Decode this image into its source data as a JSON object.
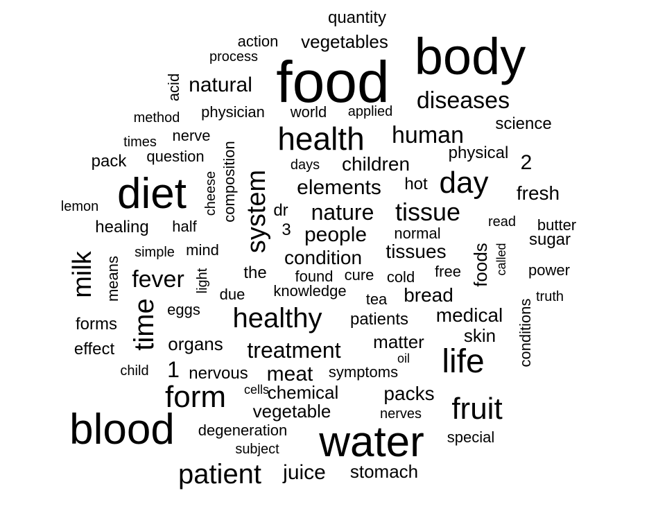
{
  "word_cloud": {
    "color": "#000000",
    "words": [
      {
        "text": "food",
        "freq": 10
      },
      {
        "text": "body",
        "freq": 9
      },
      {
        "text": "water",
        "freq": 9
      },
      {
        "text": "blood",
        "freq": 9
      },
      {
        "text": "diet",
        "freq": 8
      },
      {
        "text": "health",
        "freq": 7
      },
      {
        "text": "life",
        "freq": 7
      },
      {
        "text": "system",
        "freq": 6
      },
      {
        "text": "fruit",
        "freq": 6
      },
      {
        "text": "form",
        "freq": 6
      },
      {
        "text": "time",
        "freq": 6
      },
      {
        "text": "healthy",
        "freq": 6
      },
      {
        "text": "patient",
        "freq": 6
      },
      {
        "text": "milk",
        "freq": 5
      },
      {
        "text": "day",
        "freq": 5
      },
      {
        "text": "tissue",
        "freq": 5
      },
      {
        "text": "human",
        "freq": 4
      },
      {
        "text": "diseases",
        "freq": 4
      },
      {
        "text": "nature",
        "freq": 4
      },
      {
        "text": "treatment",
        "freq": 4
      },
      {
        "text": "fever",
        "freq": 4
      },
      {
        "text": "elements",
        "freq": 4
      },
      {
        "text": "people",
        "freq": 4
      },
      {
        "text": "natural",
        "freq": 4
      },
      {
        "text": "meat",
        "freq": 4
      },
      {
        "text": "juice",
        "freq": 4
      },
      {
        "text": "children",
        "freq": 3
      },
      {
        "text": "fresh",
        "freq": 3
      },
      {
        "text": "packs",
        "freq": 3
      },
      {
        "text": "medical",
        "freq": 3
      },
      {
        "text": "bread",
        "freq": 3
      },
      {
        "text": "tissues",
        "freq": 3
      },
      {
        "text": "condition",
        "freq": 3
      },
      {
        "text": "matter",
        "freq": 3
      },
      {
        "text": "chemical",
        "freq": 3
      },
      {
        "text": "vegetable",
        "freq": 3
      },
      {
        "text": "stomach",
        "freq": 3
      },
      {
        "text": "organs",
        "freq": 3
      },
      {
        "text": "vegetables",
        "freq": 3
      },
      {
        "text": "1",
        "freq": 3
      },
      {
        "text": "2",
        "freq": 3
      },
      {
        "text": "foods",
        "freq": 3
      },
      {
        "text": "skin",
        "freq": 3
      },
      {
        "text": "science",
        "freq": 2
      },
      {
        "text": "physician",
        "freq": 2
      },
      {
        "text": "world",
        "freq": 2
      },
      {
        "text": "healing",
        "freq": 2
      },
      {
        "text": "sugar",
        "freq": 2
      },
      {
        "text": "butter",
        "freq": 2
      },
      {
        "text": "power",
        "freq": 2
      },
      {
        "text": "physical",
        "freq": 2
      },
      {
        "text": "hot",
        "freq": 2
      },
      {
        "text": "composition",
        "freq": 2
      },
      {
        "text": "nervous",
        "freq": 2
      },
      {
        "text": "conditions",
        "freq": 2
      },
      {
        "text": "patients",
        "freq": 2
      },
      {
        "text": "degeneration",
        "freq": 2
      },
      {
        "text": "special",
        "freq": 2
      },
      {
        "text": "means",
        "freq": 2
      },
      {
        "text": "forms",
        "freq": 2
      },
      {
        "text": "effect",
        "freq": 2
      },
      {
        "text": "pack",
        "freq": 2
      },
      {
        "text": "question",
        "freq": 2
      },
      {
        "text": "nerve",
        "freq": 2
      },
      {
        "text": "quantity",
        "freq": 2
      },
      {
        "text": "action",
        "freq": 2
      },
      {
        "text": "found",
        "freq": 2
      },
      {
        "text": "cure",
        "freq": 2
      },
      {
        "text": "cold",
        "freq": 2
      },
      {
        "text": "knowledge",
        "freq": 2
      },
      {
        "text": "tea",
        "freq": 2
      },
      {
        "text": "the",
        "freq": 2
      },
      {
        "text": "cheese",
        "freq": 2
      },
      {
        "text": "half",
        "freq": 2
      },
      {
        "text": "mind",
        "freq": 2
      },
      {
        "text": "symptoms",
        "freq": 2
      },
      {
        "text": "dr",
        "freq": 2
      },
      {
        "text": "3",
        "freq": 2
      },
      {
        "text": "normal",
        "freq": 1
      },
      {
        "text": "acid",
        "freq": 1
      },
      {
        "text": "eggs",
        "freq": 1
      },
      {
        "text": "due",
        "freq": 1
      },
      {
        "text": "light",
        "freq": 1
      },
      {
        "text": "applied",
        "freq": 1
      },
      {
        "text": "method",
        "freq": 1
      },
      {
        "text": "times",
        "freq": 1
      },
      {
        "text": "process",
        "freq": 1
      },
      {
        "text": "days",
        "freq": 1
      },
      {
        "text": "lemon",
        "freq": 1
      },
      {
        "text": "simple",
        "freq": 1
      },
      {
        "text": "child",
        "freq": 1
      },
      {
        "text": "cells",
        "freq": 1
      },
      {
        "text": "oil",
        "freq": 1
      },
      {
        "text": "nerves",
        "freq": 1
      },
      {
        "text": "subject",
        "freq": 1
      },
      {
        "text": "free",
        "freq": 1
      },
      {
        "text": "called",
        "freq": 1
      },
      {
        "text": "read",
        "freq": 1
      },
      {
        "text": "truth",
        "freq": 1
      }
    ]
  }
}
